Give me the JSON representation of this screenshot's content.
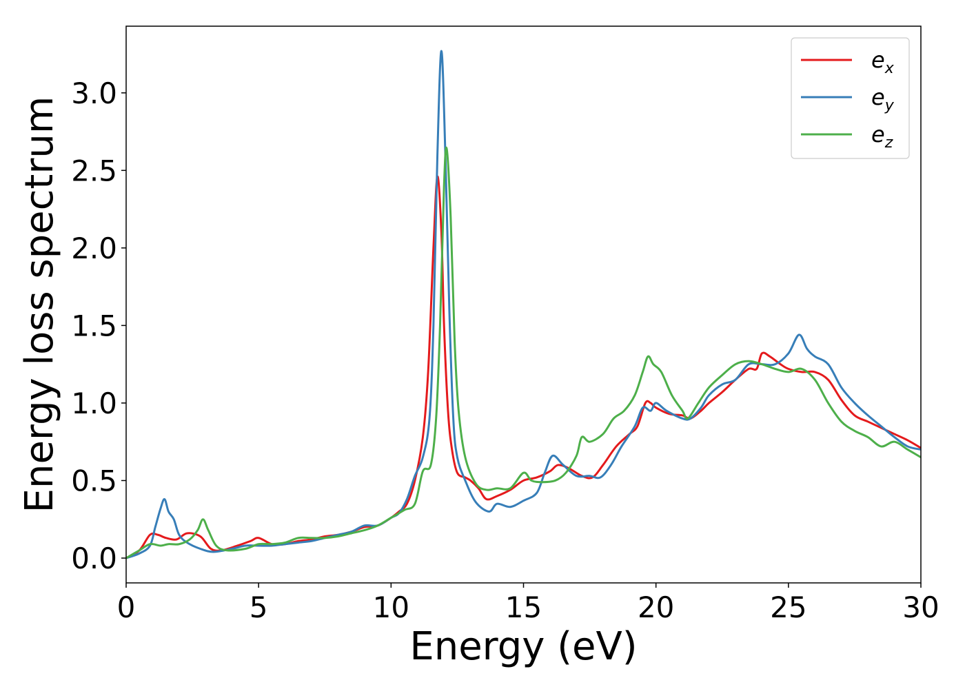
{
  "chart_data": {
    "type": "line",
    "title": "",
    "xlabel": "Energy (eV)",
    "ylabel": "Energy loss spectrum",
    "xlim": [
      0,
      30
    ],
    "ylim": [
      -0.16,
      3.43
    ],
    "xticks": [
      0,
      5,
      10,
      15,
      20,
      25,
      30
    ],
    "xtick_labels": [
      "0",
      "5",
      "10",
      "15",
      "20",
      "25",
      "30"
    ],
    "yticks": [
      0.0,
      0.5,
      1.0,
      1.5,
      2.0,
      2.5,
      3.0
    ],
    "ytick_labels": [
      "0.0",
      "0.5",
      "1.0",
      "1.5",
      "2.0",
      "2.5",
      "3.0"
    ],
    "grid": false,
    "legend_position": "top-right",
    "series": [
      {
        "name": "e_x",
        "base": "e",
        "sub": "x",
        "color": "#e41a1c",
        "points": [
          [
            0,
            0
          ],
          [
            0.5,
            0.05
          ],
          [
            0.9,
            0.15
          ],
          [
            1.2,
            0.15
          ],
          [
            1.5,
            0.13
          ],
          [
            1.9,
            0.12
          ],
          [
            2.3,
            0.16
          ],
          [
            2.8,
            0.14
          ],
          [
            3.2,
            0.06
          ],
          [
            3.6,
            0.05
          ],
          [
            4.2,
            0.08
          ],
          [
            4.7,
            0.11
          ],
          [
            5.0,
            0.13
          ],
          [
            5.5,
            0.09
          ],
          [
            6,
            0.09
          ],
          [
            6.5,
            0.11
          ],
          [
            7,
            0.12
          ],
          [
            7.5,
            0.14
          ],
          [
            8,
            0.15
          ],
          [
            8.5,
            0.17
          ],
          [
            9,
            0.2
          ],
          [
            9.5,
            0.21
          ],
          [
            10,
            0.26
          ],
          [
            10.3,
            0.3
          ],
          [
            10.6,
            0.35
          ],
          [
            10.9,
            0.5
          ],
          [
            11.2,
            0.78
          ],
          [
            11.4,
            1.2
          ],
          [
            11.6,
            2.0
          ],
          [
            11.75,
            2.46
          ],
          [
            11.9,
            2.1
          ],
          [
            12.0,
            1.5
          ],
          [
            12.15,
            0.95
          ],
          [
            12.3,
            0.7
          ],
          [
            12.5,
            0.55
          ],
          [
            12.8,
            0.52
          ],
          [
            13.0,
            0.5
          ],
          [
            13.3,
            0.45
          ],
          [
            13.6,
            0.38
          ],
          [
            14,
            0.4
          ],
          [
            14.5,
            0.44
          ],
          [
            15,
            0.5
          ],
          [
            15.5,
            0.52
          ],
          [
            16,
            0.56
          ],
          [
            16.3,
            0.6
          ],
          [
            16.7,
            0.58
          ],
          [
            17.2,
            0.53
          ],
          [
            17.6,
            0.52
          ],
          [
            18,
            0.6
          ],
          [
            18.5,
            0.72
          ],
          [
            19,
            0.8
          ],
          [
            19.3,
            0.85
          ],
          [
            19.6,
            1.0
          ],
          [
            19.8,
            1.0
          ],
          [
            20,
            0.97
          ],
          [
            20.5,
            0.93
          ],
          [
            21,
            0.92
          ],
          [
            21.3,
            0.9
          ],
          [
            21.7,
            0.95
          ],
          [
            22,
            1.0
          ],
          [
            22.5,
            1.07
          ],
          [
            23,
            1.15
          ],
          [
            23.5,
            1.22
          ],
          [
            23.8,
            1.22
          ],
          [
            24,
            1.32
          ],
          [
            24.3,
            1.3
          ],
          [
            24.7,
            1.25
          ],
          [
            25,
            1.22
          ],
          [
            25.5,
            1.2
          ],
          [
            26,
            1.2
          ],
          [
            26.5,
            1.15
          ],
          [
            27,
            1.02
          ],
          [
            27.5,
            0.92
          ],
          [
            28,
            0.88
          ],
          [
            28.5,
            0.84
          ],
          [
            29,
            0.8
          ],
          [
            29.5,
            0.76
          ],
          [
            30,
            0.71
          ]
        ]
      },
      {
        "name": "e_y",
        "base": "e",
        "sub": "y",
        "color": "#377eb8",
        "points": [
          [
            0,
            0
          ],
          [
            0.5,
            0.03
          ],
          [
            0.9,
            0.08
          ],
          [
            1.1,
            0.2
          ],
          [
            1.3,
            0.32
          ],
          [
            1.45,
            0.38
          ],
          [
            1.6,
            0.3
          ],
          [
            1.8,
            0.25
          ],
          [
            2.0,
            0.15
          ],
          [
            2.3,
            0.1
          ],
          [
            2.8,
            0.06
          ],
          [
            3.3,
            0.04
          ],
          [
            4.0,
            0.06
          ],
          [
            4.5,
            0.08
          ],
          [
            5,
            0.08
          ],
          [
            5.5,
            0.08
          ],
          [
            6,
            0.09
          ],
          [
            6.5,
            0.1
          ],
          [
            7,
            0.11
          ],
          [
            7.5,
            0.13
          ],
          [
            8,
            0.15
          ],
          [
            8.5,
            0.17
          ],
          [
            9,
            0.21
          ],
          [
            9.5,
            0.21
          ],
          [
            10,
            0.26
          ],
          [
            10.3,
            0.29
          ],
          [
            10.6,
            0.38
          ],
          [
            10.9,
            0.53
          ],
          [
            11.2,
            0.65
          ],
          [
            11.45,
            0.9
          ],
          [
            11.6,
            1.5
          ],
          [
            11.75,
            2.6
          ],
          [
            11.9,
            3.27
          ],
          [
            12.05,
            2.6
          ],
          [
            12.2,
            1.6
          ],
          [
            12.35,
            0.9
          ],
          [
            12.5,
            0.65
          ],
          [
            12.8,
            0.5
          ],
          [
            13.2,
            0.36
          ],
          [
            13.7,
            0.3
          ],
          [
            14.0,
            0.35
          ],
          [
            14.5,
            0.33
          ],
          [
            15,
            0.37
          ],
          [
            15.5,
            0.42
          ],
          [
            15.8,
            0.55
          ],
          [
            16.1,
            0.66
          ],
          [
            16.5,
            0.6
          ],
          [
            17,
            0.53
          ],
          [
            17.5,
            0.53
          ],
          [
            17.9,
            0.52
          ],
          [
            18.3,
            0.6
          ],
          [
            18.7,
            0.72
          ],
          [
            19.2,
            0.85
          ],
          [
            19.5,
            0.97
          ],
          [
            19.8,
            0.95
          ],
          [
            20,
            1.0
          ],
          [
            20.4,
            0.95
          ],
          [
            21,
            0.9
          ],
          [
            21.3,
            0.9
          ],
          [
            21.7,
            0.97
          ],
          [
            22,
            1.05
          ],
          [
            22.5,
            1.12
          ],
          [
            23,
            1.15
          ],
          [
            23.5,
            1.25
          ],
          [
            24,
            1.25
          ],
          [
            24.5,
            1.25
          ],
          [
            25,
            1.32
          ],
          [
            25.4,
            1.44
          ],
          [
            25.7,
            1.35
          ],
          [
            26,
            1.3
          ],
          [
            26.5,
            1.25
          ],
          [
            27,
            1.1
          ],
          [
            27.5,
            1.0
          ],
          [
            28,
            0.92
          ],
          [
            28.5,
            0.85
          ],
          [
            29,
            0.78
          ],
          [
            29.5,
            0.72
          ],
          [
            30,
            0.7
          ]
        ]
      },
      {
        "name": "e_z",
        "base": "e",
        "sub": "z",
        "color": "#4daf4a",
        "points": [
          [
            0,
            0
          ],
          [
            0.5,
            0.05
          ],
          [
            0.9,
            0.09
          ],
          [
            1.3,
            0.08
          ],
          [
            1.6,
            0.09
          ],
          [
            2.0,
            0.09
          ],
          [
            2.4,
            0.12
          ],
          [
            2.7,
            0.18
          ],
          [
            2.9,
            0.25
          ],
          [
            3.1,
            0.18
          ],
          [
            3.4,
            0.08
          ],
          [
            3.8,
            0.05
          ],
          [
            4.5,
            0.06
          ],
          [
            5,
            0.09
          ],
          [
            5.5,
            0.09
          ],
          [
            6,
            0.1
          ],
          [
            6.5,
            0.13
          ],
          [
            7,
            0.13
          ],
          [
            7.5,
            0.13
          ],
          [
            8,
            0.14
          ],
          [
            8.5,
            0.16
          ],
          [
            9,
            0.18
          ],
          [
            9.5,
            0.21
          ],
          [
            10,
            0.26
          ],
          [
            10.5,
            0.31
          ],
          [
            10.9,
            0.35
          ],
          [
            11.2,
            0.56
          ],
          [
            11.5,
            0.6
          ],
          [
            11.7,
            0.9
          ],
          [
            11.85,
            1.5
          ],
          [
            12.0,
            2.4
          ],
          [
            12.1,
            2.64
          ],
          [
            12.25,
            2.2
          ],
          [
            12.4,
            1.4
          ],
          [
            12.55,
            0.95
          ],
          [
            12.8,
            0.65
          ],
          [
            13.2,
            0.48
          ],
          [
            13.6,
            0.44
          ],
          [
            14,
            0.45
          ],
          [
            14.5,
            0.45
          ],
          [
            15,
            0.55
          ],
          [
            15.3,
            0.5
          ],
          [
            15.7,
            0.49
          ],
          [
            16.2,
            0.5
          ],
          [
            16.6,
            0.55
          ],
          [
            17,
            0.66
          ],
          [
            17.2,
            0.78
          ],
          [
            17.5,
            0.75
          ],
          [
            18,
            0.8
          ],
          [
            18.4,
            0.9
          ],
          [
            18.8,
            0.95
          ],
          [
            19.2,
            1.05
          ],
          [
            19.5,
            1.2
          ],
          [
            19.7,
            1.3
          ],
          [
            19.9,
            1.25
          ],
          [
            20.2,
            1.2
          ],
          [
            20.6,
            1.05
          ],
          [
            21.0,
            0.95
          ],
          [
            21.2,
            0.9
          ],
          [
            21.6,
            1.0
          ],
          [
            22,
            1.1
          ],
          [
            22.5,
            1.18
          ],
          [
            23,
            1.25
          ],
          [
            23.5,
            1.27
          ],
          [
            24,
            1.25
          ],
          [
            24.5,
            1.22
          ],
          [
            25,
            1.2
          ],
          [
            25.5,
            1.22
          ],
          [
            26,
            1.15
          ],
          [
            26.5,
            1.0
          ],
          [
            27,
            0.88
          ],
          [
            27.5,
            0.82
          ],
          [
            28,
            0.78
          ],
          [
            28.5,
            0.72
          ],
          [
            29,
            0.75
          ],
          [
            29.5,
            0.7
          ],
          [
            30,
            0.65
          ]
        ]
      }
    ]
  }
}
